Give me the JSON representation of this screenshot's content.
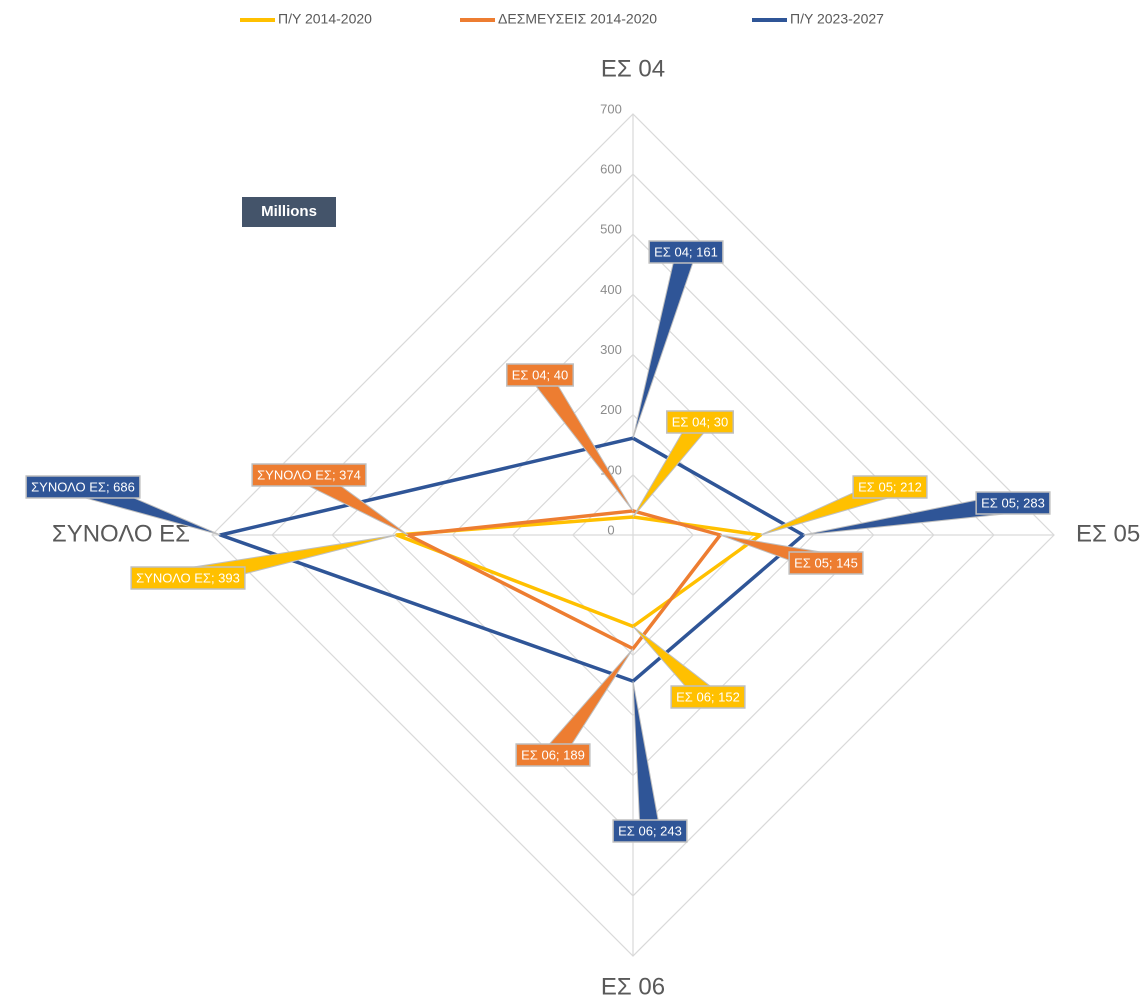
{
  "chart_data": {
    "type": "radar",
    "categories": [
      "ΕΣ 04",
      "ΕΣ 05",
      "ΕΣ 06",
      "ΣΥΝΟΛΟ ΕΣ"
    ],
    "series": [
      {
        "name": "Π/Υ 2014-2020",
        "color": "#ffc000",
        "values": [
          30,
          212,
          152,
          393
        ],
        "value_labels": [
          "ΕΣ 04; 30",
          "ΕΣ 05; 212",
          "ΕΣ 06; 152",
          "ΣΥΝΟΛΟ ΕΣ; 393"
        ]
      },
      {
        "name": "ΔΕΣΜΕΥΣΕΙΣ 2014-2020",
        "color": "#ed7d31",
        "values": [
          40,
          145,
          189,
          374
        ],
        "value_labels": [
          "ΕΣ 04; 40",
          "ΕΣ 05; 145",
          "ΕΣ 06; 189",
          "ΣΥΝΟΛΟ ΕΣ; 374"
        ]
      },
      {
        "name": "Π/Υ 2023-2027",
        "color": "#2f5597",
        "values": [
          161,
          283,
          243,
          686
        ],
        "value_labels": [
          "ΕΣ 04; 161",
          "ΕΣ 05; 283",
          "ΕΣ 06; 243",
          "ΣΥΝΟΛΟ ΕΣ; 686"
        ]
      }
    ],
    "annotation": "Millions",
    "ylim": [
      0,
      700
    ],
    "yticks": [
      0,
      100,
      200,
      300,
      400,
      500,
      600,
      700
    ],
    "grid": true,
    "legend": "top"
  }
}
